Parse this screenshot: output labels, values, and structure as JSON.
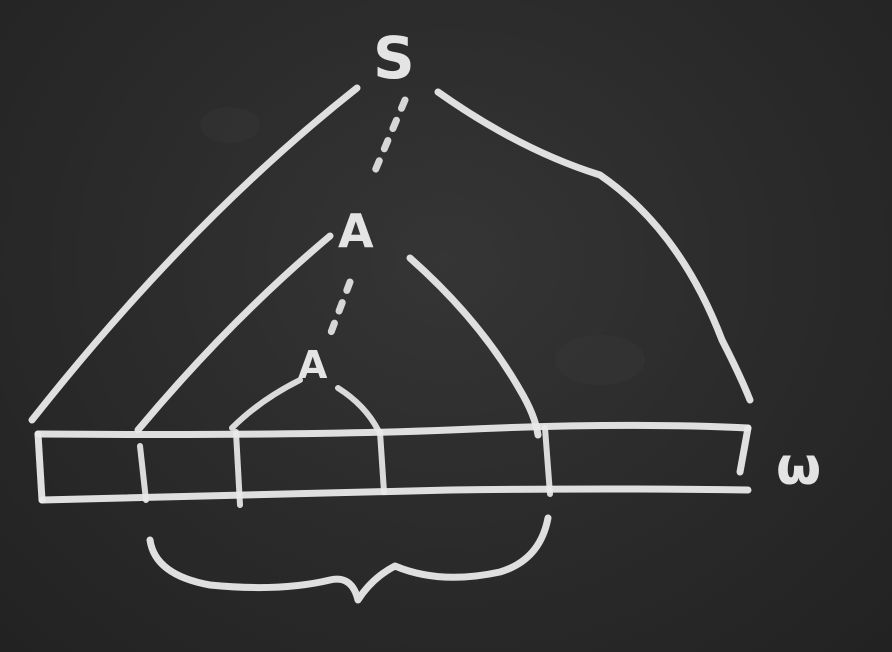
{
  "diagram": {
    "root_label": "S",
    "mid_label": "A",
    "inner_label": "A",
    "string_label": "ω"
  }
}
